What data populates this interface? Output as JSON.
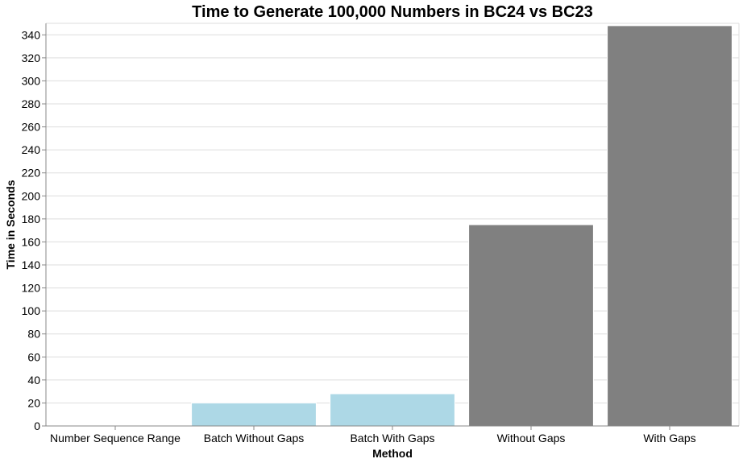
{
  "chart_data": {
    "type": "bar",
    "title": "Time to Generate 100,000 Numbers in BC24 vs BC23",
    "xlabel": "Method",
    "ylabel": "Time in Seconds",
    "categories": [
      "Number Sequence Range",
      "Batch Without Gaps",
      "Batch With Gaps",
      "Without Gaps",
      "With Gaps"
    ],
    "values": [
      0.2,
      20,
      28,
      175,
      348
    ],
    "bar_colors": [
      "#add8e6",
      "#add8e6",
      "#add8e6",
      "#808080",
      "#808080"
    ],
    "ylim": [
      0,
      350
    ],
    "yticks": [
      0,
      20,
      40,
      60,
      80,
      100,
      120,
      140,
      160,
      180,
      200,
      220,
      240,
      260,
      280,
      300,
      320,
      340
    ],
    "grid": true,
    "legend": "none"
  }
}
